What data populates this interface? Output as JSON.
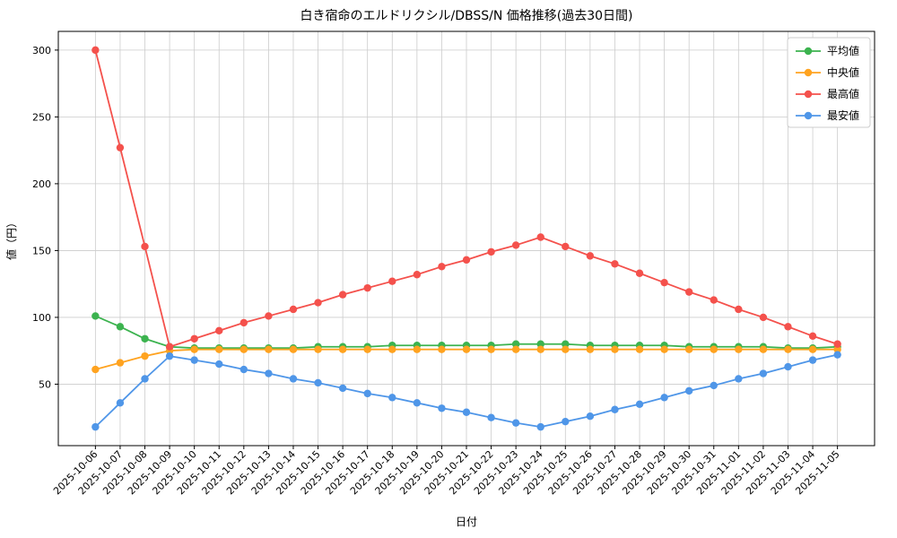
{
  "figure": {
    "background": "#ffffff",
    "plot_background": "#ffffff",
    "grid_color": "#cccccc",
    "spine_color": "#000000"
  },
  "chart_data": {
    "type": "line",
    "title": "白き宿命のエルドリクシル/DBSS/N 価格推移(過去30日間)",
    "xlabel": "日付",
    "ylabel": "値（円）",
    "ylim": [
      4,
      314
    ],
    "yticks": [
      50,
      100,
      150,
      200,
      250,
      300
    ],
    "grid": true,
    "legend_position": "upper right",
    "categories": [
      "2025-10-06",
      "2025-10-07",
      "2025-10-08",
      "2025-10-09",
      "2025-10-10",
      "2025-10-11",
      "2025-10-12",
      "2025-10-13",
      "2025-10-14",
      "2025-10-15",
      "2025-10-16",
      "2025-10-17",
      "2025-10-18",
      "2025-10-19",
      "2025-10-20",
      "2025-10-21",
      "2025-10-22",
      "2025-10-23",
      "2025-10-24",
      "2025-10-25",
      "2025-10-26",
      "2025-10-27",
      "2025-10-28",
      "2025-10-29",
      "2025-10-30",
      "2025-10-31",
      "2025-11-01",
      "2025-11-02",
      "2025-11-03",
      "2025-11-04",
      "2025-11-05"
    ],
    "series": [
      {
        "id": "average",
        "name": "平均値",
        "color": "#3cb34f",
        "values": [
          101,
          93,
          84,
          78,
          77,
          77,
          77,
          77,
          77,
          78,
          78,
          78,
          79,
          79,
          79,
          79,
          79,
          80,
          80,
          80,
          79,
          79,
          79,
          79,
          78,
          78,
          78,
          78,
          77,
          77,
          78
        ]
      },
      {
        "id": "median",
        "name": "中央値",
        "color": "#ffa320",
        "values": [
          61,
          66,
          71,
          75,
          76,
          76,
          76,
          76,
          76,
          76,
          76,
          76,
          76,
          76,
          76,
          76,
          76,
          76,
          76,
          76,
          76,
          76,
          76,
          76,
          76,
          76,
          76,
          76,
          76,
          76,
          76
        ]
      },
      {
        "id": "max",
        "name": "最高値",
        "color": "#f4514c",
        "values": [
          300,
          227,
          153,
          78,
          84,
          90,
          96,
          101,
          106,
          111,
          117,
          122,
          127,
          132,
          138,
          143,
          149,
          154,
          160,
          153,
          146,
          140,
          133,
          126,
          119,
          113,
          106,
          100,
          93,
          86,
          80
        ]
      },
      {
        "id": "min",
        "name": "最安値",
        "color": "#4f96e8",
        "values": [
          18,
          36,
          54,
          71,
          68,
          65,
          61,
          58,
          54,
          51,
          47,
          43,
          40,
          36,
          32,
          29,
          25,
          21,
          18,
          22,
          26,
          31,
          35,
          40,
          45,
          49,
          54,
          58,
          63,
          68,
          72
        ]
      }
    ]
  }
}
